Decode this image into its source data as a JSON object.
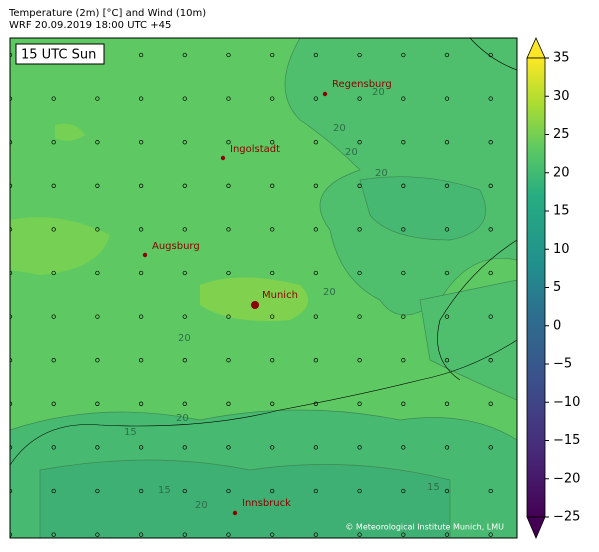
{
  "header": {
    "title": "Temperature (2m) [°C] and Wind (10m)",
    "subtitle": "WRF 20.09.2019 18:00 UTC +45"
  },
  "map": {
    "time_label": "15 UTC Sun",
    "cities": [
      {
        "name": "Regensburg"
      },
      {
        "name": "Ingolstadt"
      },
      {
        "name": "Augsburg"
      },
      {
        "name": "Munich"
      },
      {
        "name": "Innsbruck"
      }
    ],
    "contour_labels": [
      "20",
      "20",
      "20",
      "20",
      "20",
      "20",
      "15",
      "15",
      "20",
      "15",
      "20"
    ],
    "credit": "© Meteorological Institute Munich, LMU"
  },
  "colorbar": {
    "range": [
      -25,
      35
    ],
    "ticks": [
      35,
      30,
      25,
      20,
      15,
      10,
      5,
      0,
      {
        "value": -5,
        "label": "−5"
      },
      {
        "value": -10,
        "label": "−10"
      },
      {
        "value": -15,
        "label": "−15"
      },
      {
        "value": -20,
        "label": "−20"
      },
      {
        "value": -25,
        "label": "−25"
      }
    ]
  }
}
